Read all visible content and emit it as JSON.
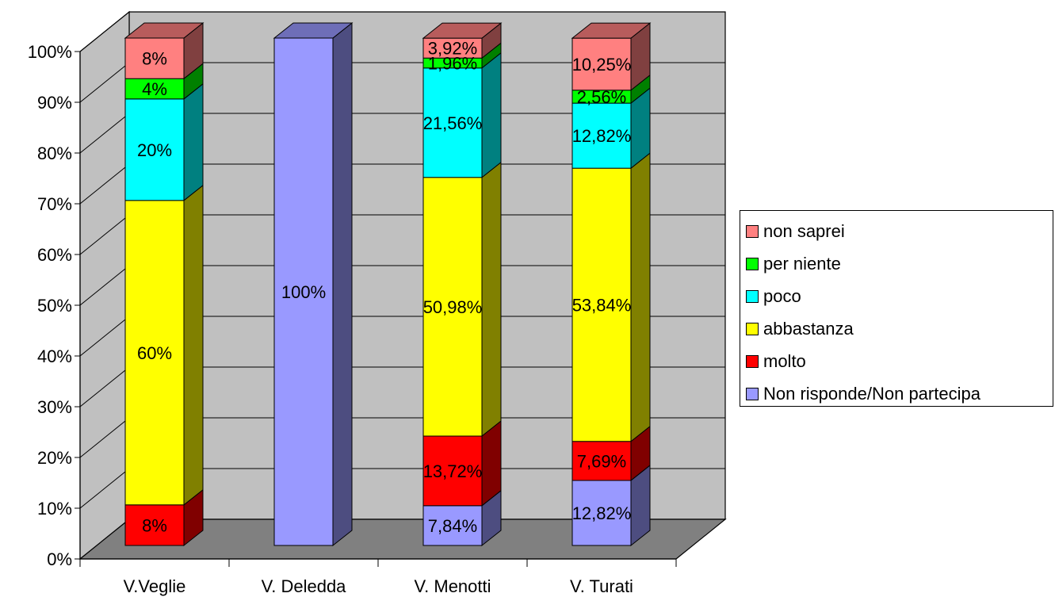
{
  "chart_data": {
    "type": "stacked-bar-3d-percent",
    "categories": [
      "V.Veglie",
      "V. Deledda",
      "V. Menotti",
      "V. Turati"
    ],
    "ylim": [
      0,
      100
    ],
    "yticks": [
      "0%",
      "10%",
      "20%",
      "30%",
      "40%",
      "50%",
      "60%",
      "70%",
      "80%",
      "90%",
      "100%"
    ],
    "grid": true,
    "legend_position": "right",
    "series": [
      {
        "name": "Non risponde/Non partecipa",
        "color": "#9999FF",
        "values": [
          0,
          100,
          7.84,
          12.82
        ],
        "labels": [
          "",
          "100%",
          "7,84%",
          "12,82%"
        ]
      },
      {
        "name": "molto",
        "color": "#FF0000",
        "values": [
          8,
          0,
          13.72,
          7.69
        ],
        "labels": [
          "8%",
          "",
          "13,72%",
          "7,69%"
        ]
      },
      {
        "name": "abbastanza",
        "color": "#FFFF00",
        "values": [
          60,
          0,
          50.98,
          53.84
        ],
        "labels": [
          "60%",
          "",
          "50,98%",
          "53,84%"
        ]
      },
      {
        "name": "poco",
        "color": "#00FFFF",
        "values": [
          20,
          0,
          21.56,
          12.82
        ],
        "labels": [
          "20%",
          "",
          "21,56%",
          "12,82%"
        ]
      },
      {
        "name": "per niente",
        "color": "#00FF00",
        "values": [
          4,
          0,
          1.96,
          2.56
        ],
        "labels": [
          "4%",
          "",
          "1,96%",
          "2,56%"
        ]
      },
      {
        "name": "non saprei",
        "color": "#FF8080",
        "values": [
          8,
          0,
          3.92,
          10.25
        ],
        "labels": [
          "8%",
          "",
          "3,92%",
          "10,25%"
        ]
      }
    ],
    "legend_order": [
      "non saprei",
      "per niente",
      "poco",
      "abbastanza",
      "molto",
      "Non risponde/Non partecipa"
    ],
    "colors": {
      "wall": "#C0C0C0",
      "floor": "#808080",
      "grid": "#000000"
    }
  }
}
